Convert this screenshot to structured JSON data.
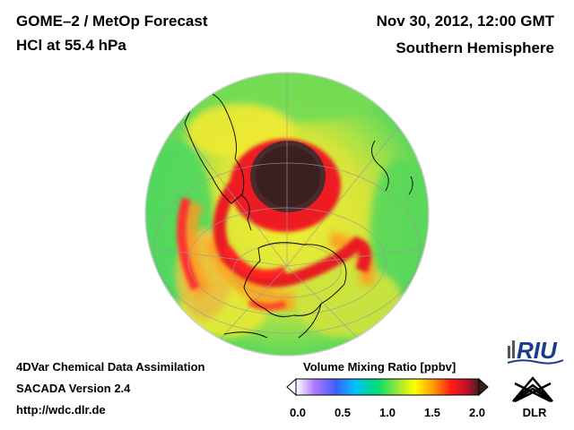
{
  "header": {
    "title_line1": "GOME–2 / MetOp Forecast",
    "title_line2": "HCl at 55.4 hPa",
    "date": "Nov 30, 2012, 12:00 GMT",
    "region": "Southern Hemisphere"
  },
  "footer": {
    "line1": "4DVar Chemical Data Assimilation",
    "line2": "SACADA Version 2.4",
    "line3": "http://wdc.dlr.de"
  },
  "colorbar": {
    "title": "Volume Mixing Ratio [ppbv]",
    "ticks": [
      "0.0",
      "0.5",
      "1.0",
      "1.5",
      "2.0"
    ],
    "range": [
      0.0,
      2.0
    ],
    "colors": [
      "#ffffff",
      "#9b5de5",
      "#3f5fff",
      "#00bfff",
      "#00e070",
      "#ffff00",
      "#ff9c00",
      "#ff1a1a",
      "#c8102e",
      "#3a2020"
    ]
  },
  "logos": {
    "riu": "RIU",
    "dlr": "DLR"
  }
}
